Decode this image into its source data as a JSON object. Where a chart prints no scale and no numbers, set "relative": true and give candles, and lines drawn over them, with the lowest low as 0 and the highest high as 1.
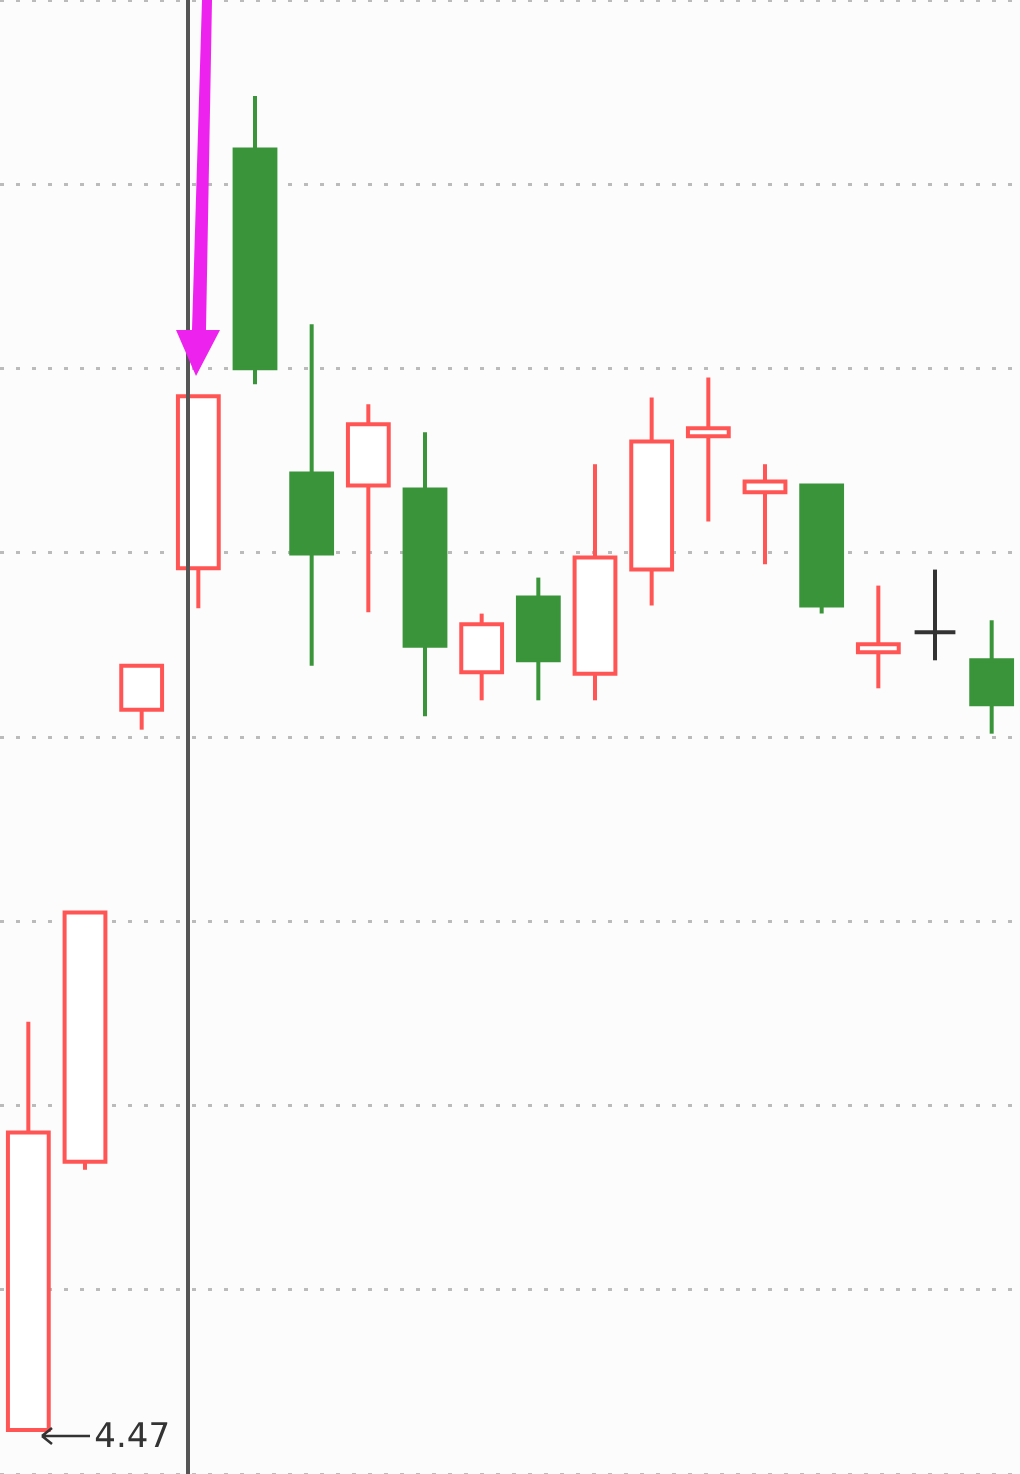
{
  "chart_data": {
    "type": "candlestick",
    "relative": true,
    "grid": "y",
    "tick_labels": false,
    "categories": [
      null,
      null,
      null,
      null,
      null,
      null,
      null,
      null,
      null,
      null,
      null,
      null,
      null,
      null,
      null,
      null,
      null,
      null
    ],
    "ohlc": [
      [
        0,
        0.306,
        0,
        0.223
      ],
      [
        0.201,
        0.388,
        0.195,
        0.388
      ],
      [
        0.54,
        0.573,
        0.525,
        0.573
      ],
      [
        0.646,
        0.775,
        0.616,
        0.775
      ],
      [
        0.96,
        1,
        0.784,
        0.796
      ],
      [
        0.717,
        0.829,
        0.573,
        0.657
      ],
      [
        0.708,
        0.769,
        0.613,
        0.754
      ],
      [
        0.705,
        0.748,
        0.535,
        0.588
      ],
      [
        0.568,
        0.612,
        0.547,
        0.604
      ],
      [
        0.624,
        0.639,
        0.547,
        0.577
      ],
      [
        0.567,
        0.724,
        0.547,
        0.654
      ],
      [
        0.645,
        0.774,
        0.618,
        0.741
      ],
      [
        0.745,
        0.789,
        0.681,
        0.751
      ],
      [
        0.703,
        0.724,
        0.649,
        0.711
      ],
      [
        0.708,
        0.708,
        0.612,
        0.618
      ],
      [
        0.583,
        0.633,
        0.556,
        0.589
      ],
      [
        0.598,
        0.645,
        0.577,
        0.598
      ],
      [
        0.577,
        0.607,
        0.522,
        0.544
      ]
    ],
    "colors": [
      "#ff5555",
      "#ff5555",
      "#ff5555",
      "#ff5555",
      "#3a943a",
      "#3a943a",
      "#ff5555",
      "#3a943a",
      "#ff5555",
      "#3a943a",
      "#ff5555",
      "#ff5555",
      "#ff5555",
      "#ff5555",
      "#3a943a",
      "#ff5555",
      "#333333",
      "#3a943a"
    ],
    "annotations": [
      "4.47"
    ]
  }
}
